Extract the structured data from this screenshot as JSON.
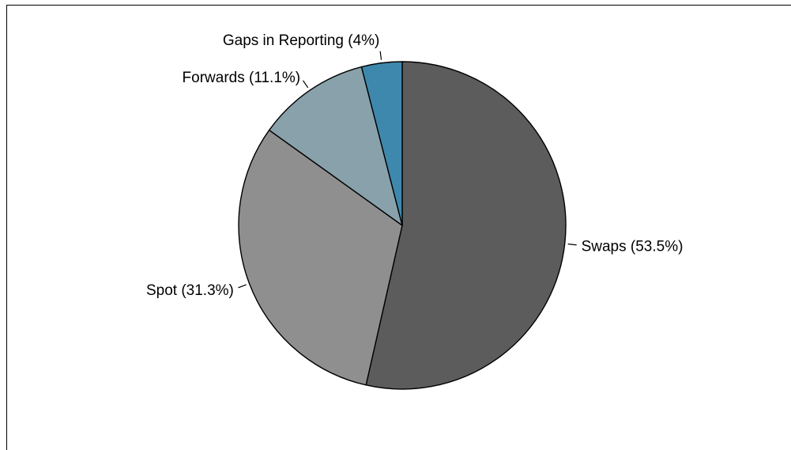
{
  "chart_data": {
    "type": "pie",
    "start_angle": "12 o'clock",
    "direction": "clockwise",
    "slices": [
      {
        "label": "Swaps (53.5%)",
        "name": "Swaps",
        "value": 53.5,
        "color": "#5c5c5c"
      },
      {
        "label": "Spot (31.3%)",
        "name": "Spot",
        "value": 31.3,
        "color": "#8f8f8f"
      },
      {
        "label": "Forwards (11.1%)",
        "name": "Forwards",
        "value": 11.1,
        "color": "#88a1ab"
      },
      {
        "label": "Gaps in Reporting (4%)",
        "name": "Gaps in Reporting",
        "value": 4.0,
        "color": "#3f88ad"
      }
    ]
  }
}
